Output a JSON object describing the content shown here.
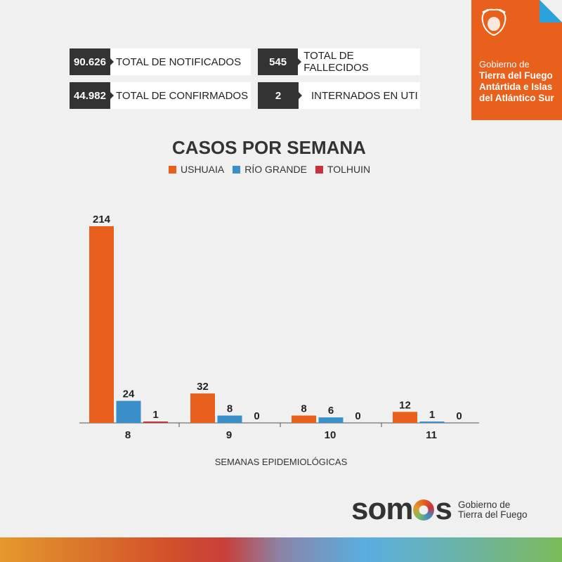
{
  "stats": [
    {
      "value": "90.626",
      "label": "TOTAL DE NOTIFICADOS"
    },
    {
      "value": "545",
      "label": "TOTAL DE FALLECIDOS"
    },
    {
      "value": "44.982",
      "label": "TOTAL DE CONFIRMADOS"
    },
    {
      "value": "2",
      "label": "INTERNADOS EN UTI"
    }
  ],
  "brand": {
    "line1": "Gobierno de",
    "line2": "Tierra del Fuego",
    "line3": "Antártida e Islas",
    "line4": "del Atlántico Sur"
  },
  "footer": {
    "logo": "somos",
    "sub1": "Gobierno de",
    "sub2": "Tierra del Fuego"
  },
  "chart_data": {
    "type": "bar",
    "title": "CASOS POR SEMANA",
    "xlabel": "SEMANAS EPIDEMIOLÓGICAS",
    "ylabel": "",
    "categories": [
      "8",
      "9",
      "10",
      "11"
    ],
    "series": [
      {
        "name": "USHUAIA",
        "color": "#e8601c",
        "values": [
          214,
          32,
          8,
          12
        ]
      },
      {
        "name": "RÍO GRANDE",
        "color": "#3a8fc8",
        "values": [
          24,
          8,
          6,
          1
        ]
      },
      {
        "name": "TOLHUIN",
        "color": "#c8323c",
        "values": [
          1,
          0,
          0,
          0
        ]
      }
    ],
    "ylim": [
      0,
      214
    ],
    "legend": "top"
  }
}
